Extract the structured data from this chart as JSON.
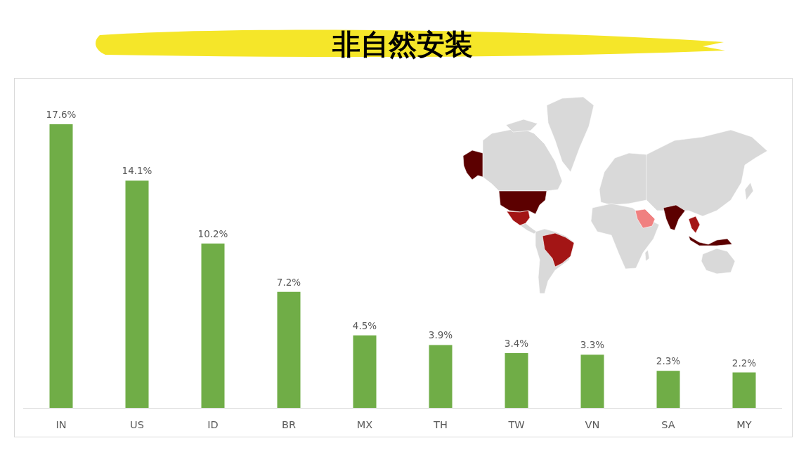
{
  "chart_data": {
    "type": "bar",
    "title": "非自然安装",
    "categories": [
      "IN",
      "US",
      "ID",
      "BR",
      "MX",
      "TH",
      "TW",
      "VN",
      "SA",
      "MY"
    ],
    "values": [
      17.6,
      14.1,
      10.2,
      7.2,
      4.5,
      3.9,
      3.4,
      3.3,
      2.3,
      2.2
    ],
    "value_labels": [
      "17.6%",
      "14.1%",
      "10.2%",
      "7.2%",
      "4.5%",
      "3.9%",
      "3.4%",
      "3.3%",
      "2.3%",
      "2.2%"
    ],
    "color": "#70ad47"
  }
}
